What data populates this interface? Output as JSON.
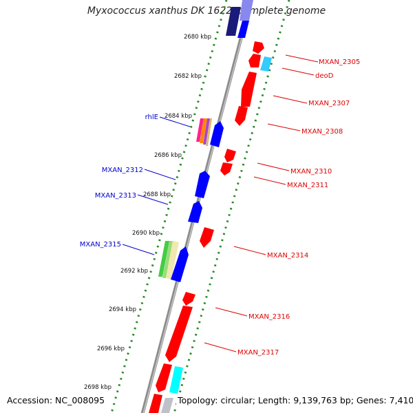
{
  "title": "Myxococcus xanthus DK 1622, complete genome",
  "footer": {
    "accession": "Accession: NC_008095",
    "summary": "Topology: circular; Length: 9,139,763 bp; Genes: 7,410"
  },
  "colors": {
    "forward_gene": "#0000ff",
    "reverse_gene": "#ff0000",
    "forward_label": "#0000cc",
    "reverse_label": "#dd0000",
    "ruler_tick": "#1f8a1f",
    "backbone": "#8a8a8a"
  },
  "ruler_labels": [
    "2680 kbp",
    "2682 kbp",
    "2684 kbp",
    "2686 kbp",
    "2688 kbp",
    "2690 kbp",
    "2692 kbp",
    "2694 kbp",
    "2696 kbp",
    "2698 kbp"
  ],
  "forward_labels": [
    "rhlE",
    "MXAN_2312",
    "MXAN_2313",
    "MXAN_2315"
  ],
  "reverse_labels": [
    "MXAN_2305",
    "deoD",
    "MXAN_2307",
    "MXAN_2308",
    "MXAN_2310",
    "MXAN_2311",
    "MXAN_2314",
    "MXAN_2316",
    "MXAN_2317"
  ]
}
